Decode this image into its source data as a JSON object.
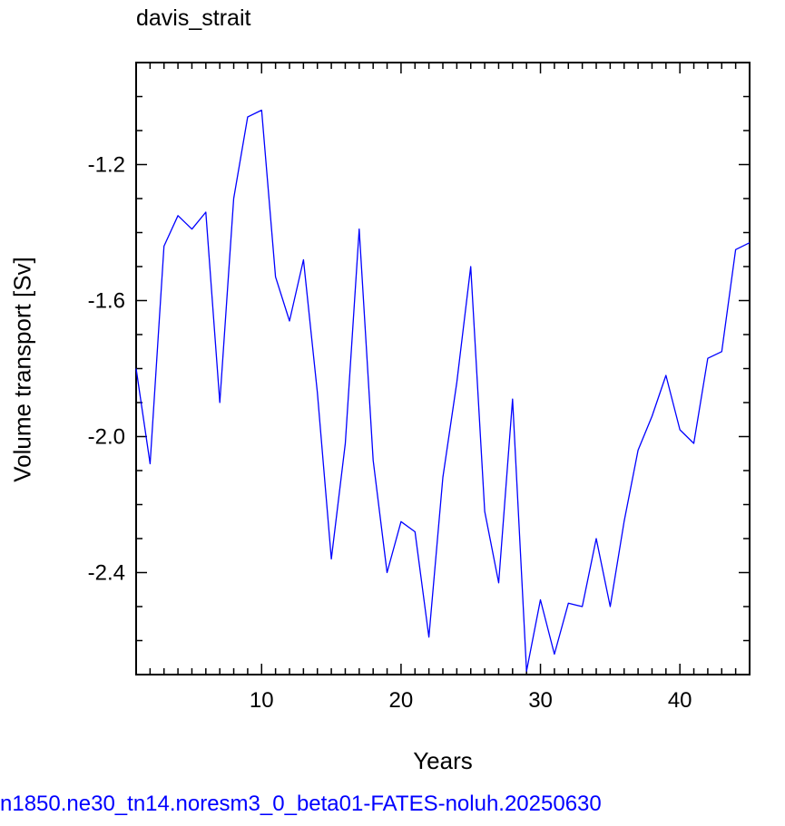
{
  "chart_data": {
    "type": "line",
    "title": "davis_strait",
    "xlabel": "Years",
    "ylabel": "Volume transport [Sv]",
    "caption": "n1850.ne30_tn14.noresm3_0_beta01-FATES-noluh.20250630",
    "xlim": [
      1,
      45
    ],
    "ylim": [
      -2.7,
      -0.9
    ],
    "x_ticks": [
      10,
      20,
      30,
      40
    ],
    "y_ticks": [
      -1.2,
      -1.6,
      -2.0,
      -2.4
    ],
    "y_tick_labels": [
      "-1.2",
      "-1.6",
      "-2.0",
      "-2.4"
    ],
    "grid": false,
    "series": [
      {
        "color": "#0000ff",
        "x": [
          1,
          2,
          3,
          4,
          5,
          6,
          7,
          8,
          9,
          10,
          11,
          12,
          13,
          14,
          15,
          16,
          17,
          18,
          19,
          20,
          21,
          22,
          23,
          24,
          25,
          26,
          27,
          28,
          29,
          30,
          31,
          32,
          33,
          34,
          35,
          36,
          37,
          38,
          39,
          40,
          41,
          42,
          43,
          44,
          45
        ],
        "values": [
          -1.8,
          -2.08,
          -1.44,
          -1.35,
          -1.39,
          -1.34,
          -1.9,
          -1.3,
          -1.06,
          -1.04,
          -1.53,
          -1.66,
          -1.48,
          -1.87,
          -2.36,
          -2.02,
          -1.39,
          -2.07,
          -2.4,
          -2.25,
          -2.28,
          -2.59,
          -2.12,
          -1.84,
          -1.5,
          -2.22,
          -2.43,
          -1.89,
          -2.69,
          -2.48,
          -2.64,
          -2.49,
          -2.5,
          -2.3,
          -2.5,
          -2.25,
          -2.04,
          -1.94,
          -1.82,
          -1.98,
          -2.02,
          -1.77,
          -1.75,
          -1.45,
          -1.43
        ]
      }
    ]
  }
}
